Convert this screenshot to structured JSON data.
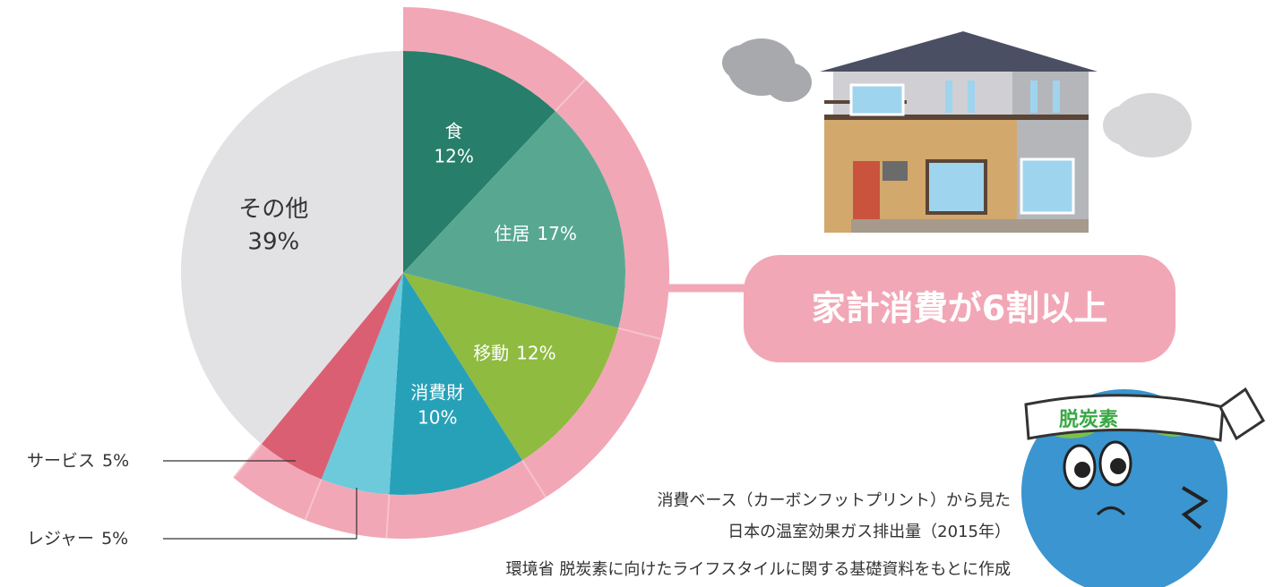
{
  "chart_data": {
    "type": "pie",
    "categories": [
      "食",
      "住居",
      "移動",
      "消費財",
      "レジャー",
      "サービス",
      "その他"
    ],
    "values": [
      12,
      17,
      12,
      10,
      5,
      5,
      39
    ],
    "value_labels": [
      "12%",
      "17%",
      "12%",
      "10%",
      "5%",
      "5%",
      "39%"
    ],
    "colors": [
      "#277e6a",
      "#58a891",
      "#8fbb40",
      "#27a1b8",
      "#6ccadb",
      "#db5f73",
      "#e2e2e4"
    ],
    "annotation": "家計消費が6割以上",
    "caption": [
      "消費ベース（カーボンフットプリント）から見た",
      "日本の温室効果ガス排出量（2015年）"
    ],
    "source": "環境省 脱炭素に向けたライフスタイルに関する基礎資料をもとに作成"
  },
  "illustration_text": "脱炭素"
}
